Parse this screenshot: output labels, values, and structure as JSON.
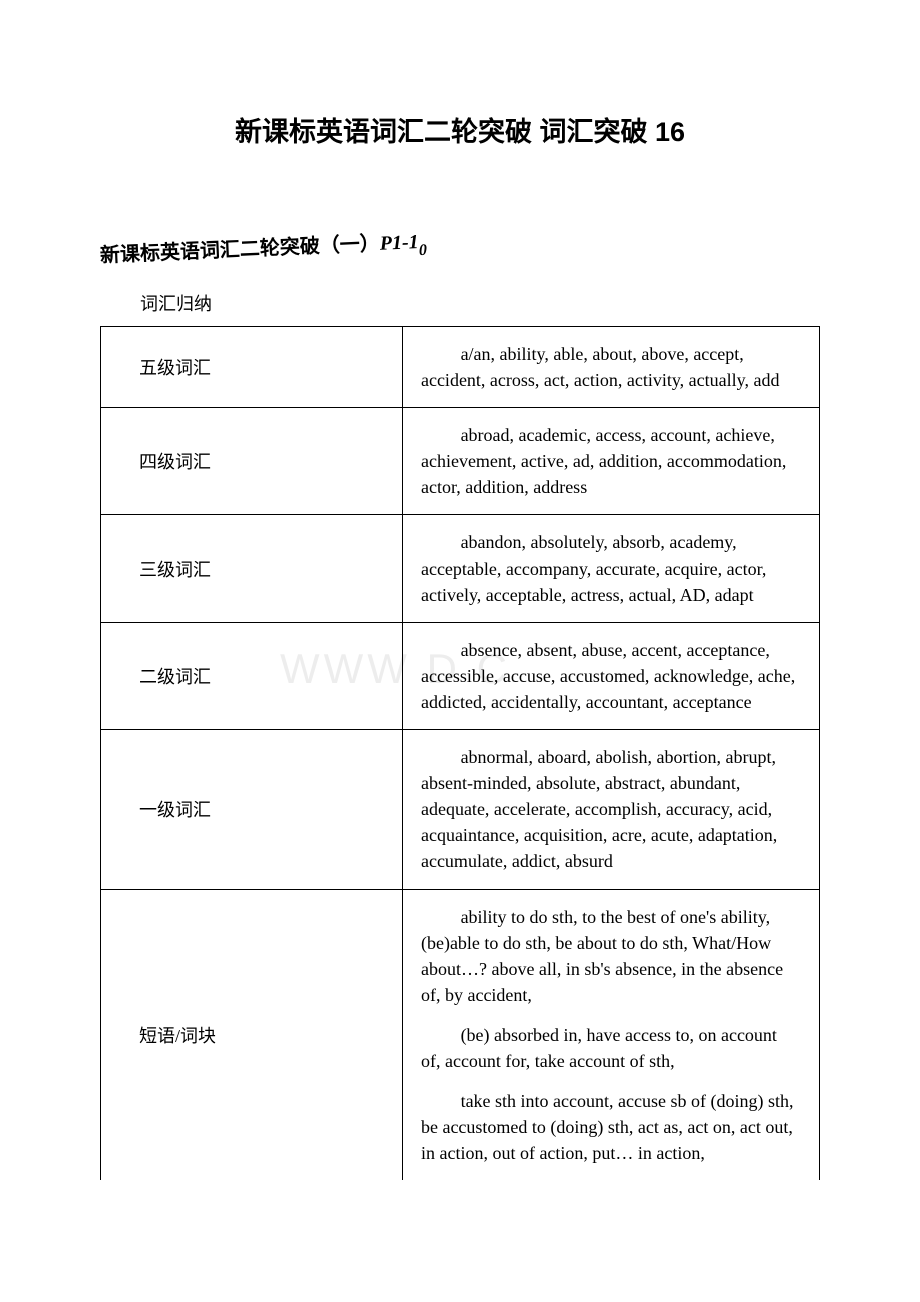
{
  "title": "新课标英语词汇二轮突破 词汇突破 16",
  "subtitle_cn": "新课标英语词汇二轮突破（一）",
  "subtitle_p1": "P1-1",
  "subtitle_ten": "0",
  "caption": "词汇归纳",
  "watermark": "WWW  D     C   ",
  "rows": [
    {
      "label": "五级词汇",
      "paras": [
        "a/an, ability, able, about, above, accept, accident, across, act, action, activity, actually, add"
      ]
    },
    {
      "label": "四级词汇",
      "paras": [
        "abroad, academic, access, account, achieve, achievement, active, ad, addition, accommodation, actor, addition, address"
      ]
    },
    {
      "label": "三级词汇",
      "paras": [
        "abandon, absolutely, absorb, academy, acceptable, accompany, accurate, acquire, actor, actively, acceptable, actress, actual, AD, adapt"
      ]
    },
    {
      "label": "二级词汇",
      "paras": [
        "absence, absent, abuse, accent, acceptance, accessible, accuse, accustomed, acknowledge, ache, addicted, accidentally, accountant, acceptance"
      ]
    },
    {
      "label": "一级词汇",
      "paras": [
        "abnormal, aboard, abolish, abortion, abrupt, absent-minded, absolute, abstract, abundant, adequate, accelerate, accomplish, accuracy, acid, acquaintance, acquisition, acre, acute, adaptation, accumulate, addict, absurd"
      ]
    },
    {
      "label": "短语/词块",
      "paras": [
        "ability to do sth, to the best of one's ability, (be)able to do sth, be about to do sth,  What/How about…? above all, in sb's absence, in the absence of, by accident,",
        "(be) absorbed in, have access to, on account of, account for, take account of sth,",
        "take sth into account, accuse sb of (doing) sth, be accustomed to (doing) sth, act as, act on, act out, in action, out of action, put… in action,"
      ]
    }
  ]
}
